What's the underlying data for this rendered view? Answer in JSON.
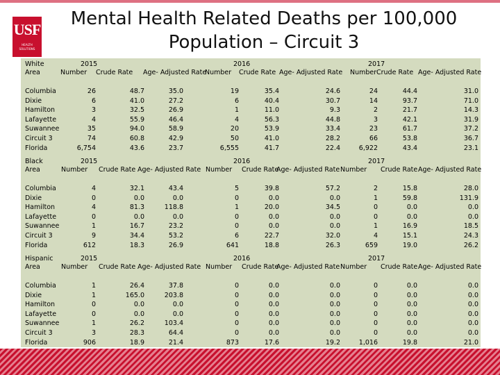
{
  "logo": {
    "letters": "USF",
    "sub1": "HEALTH",
    "sub2": "SOLUTIONS"
  },
  "title": {
    "line1": "Mental Health Related Deaths per 100,000",
    "line2": "Population – Circuit 3"
  },
  "areas": [
    "Columbia",
    "Dixie",
    "Hamilton",
    "Lafayette",
    "Suwannee",
    "Circuit 3",
    "Florida"
  ],
  "headers": {
    "years": [
      "2015",
      "2016",
      "2017"
    ],
    "area": "Area",
    "number": "Number",
    "crude": "Crude Rate",
    "adjusted": "Age- Adjusted Rate"
  },
  "sections": [
    {
      "label": "White",
      "columns": [
        [
          "26",
          "6",
          "3",
          "4",
          "35",
          "74",
          "6,754"
        ],
        [
          "48.7",
          "41.0",
          "32.5",
          "55.9",
          "94.0",
          "60.8",
          "43.6"
        ],
        [
          "35.0",
          "27.2",
          "26.9",
          "46.4",
          "58.9",
          "42.9",
          "23.7"
        ],
        [
          "19",
          "6",
          "1",
          "4",
          "20",
          "50",
          "6,555"
        ],
        [
          "35.4",
          "40.4",
          "11.0",
          "56.3",
          "53.9",
          "41.0",
          "41.7"
        ],
        [
          "24.6",
          "30.7",
          "9.3",
          "44.8",
          "33.4",
          "28.2",
          "22.4"
        ],
        [
          "24",
          "14",
          "2",
          "3",
          "23",
          "66",
          "6,922"
        ],
        [
          "44.4",
          "93.7",
          "21.7",
          "42.1",
          "61.7",
          "53.8",
          "43.4"
        ],
        [
          "31.0",
          "71.0",
          "14.3",
          "31.9",
          "37.2",
          "36.7",
          "23.1"
        ]
      ]
    },
    {
      "label": "Black",
      "columns": [
        [
          "4",
          "0",
          "4",
          "0",
          "1",
          "9",
          "612"
        ],
        [
          "32.1",
          "0.0",
          "81.3",
          "0.0",
          "16.7",
          "34.4",
          "18.3"
        ],
        [
          "43.4",
          "0.0",
          "118.8",
          "0.0",
          "23.2",
          "53.2",
          "26.9"
        ],
        [
          "5",
          "0",
          "1",
          "0",
          "0",
          "6",
          "641"
        ],
        [
          "39.8",
          "0.0",
          "20.0",
          "0.0",
          "0.0",
          "22.7",
          "18.8"
        ],
        [
          "57.2",
          "0.0",
          "34.5",
          "0.0",
          "0.0",
          "32.0",
          "26.3"
        ],
        [
          "2",
          "1",
          "0",
          "0",
          "1",
          "4",
          "659"
        ],
        [
          "15.8",
          "59.8",
          "0.0",
          "0.0",
          "16.9",
          "15.1",
          "19.0"
        ],
        [
          "28.0",
          "131.9",
          "0.0",
          "0.0",
          "18.5",
          "24.3",
          "26.2"
        ]
      ]
    },
    {
      "label": "Hispanic",
      "columns": [
        [
          "1",
          "1",
          "0",
          "0",
          "1",
          "3",
          "906"
        ],
        [
          "26.4",
          "165.0",
          "0.0",
          "0.0",
          "26.2",
          "28.3",
          "18.9"
        ],
        [
          "37.8",
          "203.8",
          "0.0",
          "0.0",
          "103.4",
          "64.4",
          "21.4"
        ],
        [
          "0",
          "0",
          "0",
          "0",
          "0",
          "0",
          "873"
        ],
        [
          "0.0",
          "0.0",
          "0.0",
          "0.0",
          "0.0",
          "0.0",
          "17.6"
        ],
        [
          "0.0",
          "0.0",
          "0.0",
          "0.0",
          "0.0",
          "0.0",
          "19.2"
        ],
        [
          "0",
          "0",
          "0",
          "0",
          "0",
          "0",
          "1,016"
        ],
        [
          "0.0",
          "0.0",
          "0.0",
          "0.0",
          "0.0",
          "0.0",
          "19.8"
        ],
        [
          "0.0",
          "0.0",
          "0.0",
          "0.0",
          "0.0",
          "0.0",
          "21.0"
        ]
      ]
    }
  ]
}
